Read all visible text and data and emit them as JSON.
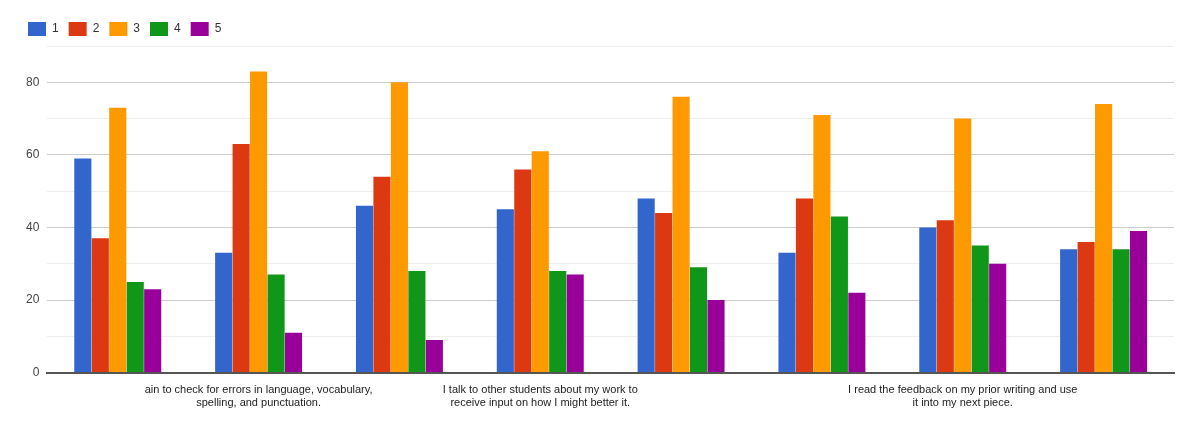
{
  "chart_data": {
    "type": "bar",
    "categories": [
      null,
      "ain to check for errors in language, vocabulary, spelling, and punctuation.",
      null,
      "I talk to other students about my work to receive input on how I might better it.",
      null,
      null,
      "I read the feedback on my prior writing and use it into my next piece.",
      null
    ],
    "series": [
      {
        "name": "1",
        "color": "#3366cc",
        "values": [
          59,
          33,
          46,
          45,
          48,
          33,
          40,
          34
        ]
      },
      {
        "name": "2",
        "color": "#dc3912",
        "values": [
          37,
          63,
          54,
          56,
          44,
          48,
          42,
          36
        ]
      },
      {
        "name": "3",
        "color": "#ff9900",
        "values": [
          73,
          83,
          80,
          61,
          76,
          71,
          70,
          74
        ]
      },
      {
        "name": "4",
        "color": "#109618",
        "values": [
          25,
          27,
          28,
          28,
          29,
          43,
          35,
          34
        ]
      },
      {
        "name": "5",
        "color": "#990099",
        "values": [
          23,
          11,
          9,
          27,
          20,
          22,
          30,
          39
        ]
      }
    ],
    "ylim": [
      0,
      90
    ],
    "yticks": [
      0,
      {
        "value": 10,
        "label": null
      },
      20,
      {
        "value": 30,
        "label": null
      },
      40,
      {
        "value": 50,
        "label": null
      },
      60,
      {
        "value": 70,
        "label": null
      },
      80,
      {
        "value": 90,
        "label": null
      }
    ],
    "grid": "y",
    "legend": "top left"
  }
}
